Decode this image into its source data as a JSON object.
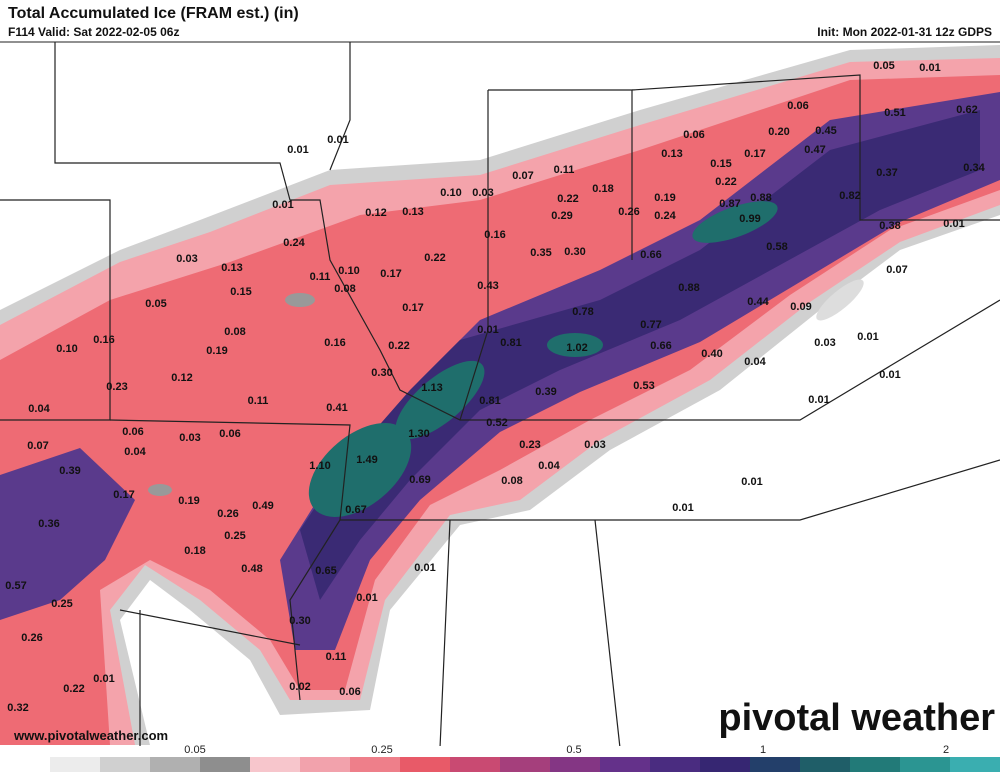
{
  "header": {
    "title": "Total Accumulated Ice (FRAM est.) (in)",
    "valid": "F114 Valid: Sat 2022-02-05 06z",
    "init": "Init: Mon 2022-01-31 12z GDPS"
  },
  "map": {
    "labels": [
      "0.05",
      "0.01",
      "0.06",
      "0.51",
      "0.62",
      "0.01",
      "0.01",
      "0.06",
      "0.20",
      "0.45",
      "0.13",
      "0.17",
      "0.47",
      "0.15",
      "0.37",
      "0.34",
      "0.07",
      "0.11",
      "0.22",
      "0.18",
      "0.10",
      "0.03",
      "0.19",
      "0.87",
      "0.88",
      "0.82",
      "0.22",
      "0.01",
      "0.12",
      "0.13",
      "0.29",
      "0.26",
      "0.24",
      "0.99",
      "0.38",
      "0.01",
      "0.16",
      "0.24",
      "0.58",
      "0.03",
      "0.35",
      "0.30",
      "0.66",
      "0.22",
      "0.13",
      "0.11",
      "0.10",
      "0.17",
      "0.07",
      "0.08",
      "0.43",
      "0.88",
      "0.15",
      "0.05",
      "0.17",
      "0.44",
      "0.09",
      "0.78",
      "0.01",
      "0.77",
      "0.08",
      "0.01",
      "0.16",
      "0.16",
      "0.22",
      "0.81",
      "1.02",
      "0.66",
      "0.03",
      "0.10",
      "0.19",
      "0.40",
      "0.04",
      "0.30",
      "0.01",
      "0.12",
      "1.13",
      "0.53",
      "0.23",
      "0.39",
      "0.11",
      "0.81",
      "0.01",
      "0.04",
      "0.41",
      "0.52",
      "0.06",
      "0.03",
      "0.06",
      "1.30",
      "0.07",
      "0.04",
      "0.23",
      "0.03",
      "1.49",
      "0.39",
      "1.10",
      "0.04",
      "0.69",
      "0.08",
      "0.01",
      "0.17",
      "0.19",
      "0.49",
      "0.67",
      "0.01",
      "0.26",
      "0.36",
      "0.25",
      "0.18",
      "0.48",
      "0.65",
      "0.01",
      "0.57",
      "0.25",
      "0.01",
      "0.30",
      "0.26",
      "0.11",
      "0.01",
      "0.22",
      "0.02",
      "0.06",
      "0.32"
    ]
  },
  "colorbar": {
    "ticks": [
      "0.05",
      "0.25",
      "0.5",
      "1",
      "2"
    ]
  },
  "footer": {
    "website": "www.pivotalweather.com",
    "watermark": "pivotal weather"
  }
}
